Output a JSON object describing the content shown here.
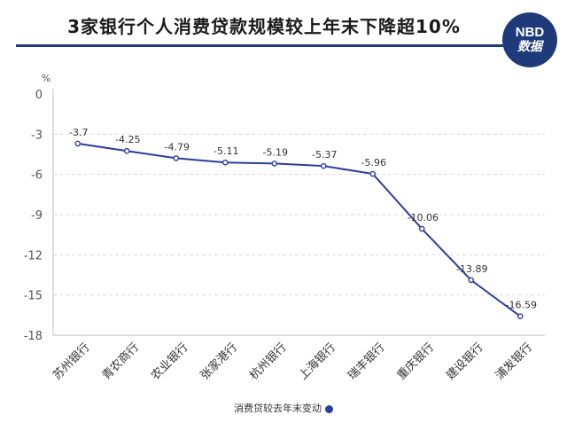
{
  "title": "3家银行个人消费贷款规模较上年末下降超10%",
  "logo": {
    "line1": "NBD",
    "line2": "数据"
  },
  "colors": {
    "accent": "#1e3a7b",
    "line": "#2c3e9e"
  },
  "chart_data": {
    "type": "line",
    "unit": "%",
    "categories": [
      "苏州银行",
      "青农商行",
      "农业银行",
      "张家港行",
      "杭州银行",
      "上海银行",
      "瑞丰银行",
      "重庆银行",
      "建设银行",
      "浦发银行"
    ],
    "series": [
      {
        "name": "消费贷较去年末变动",
        "values": [
          -3.7,
          -4.25,
          -4.79,
          -5.11,
          -5.19,
          -5.37,
          -5.96,
          -10.06,
          -13.89,
          -16.59
        ]
      }
    ],
    "data_labels": [
      "-3.7",
      "-4.25",
      "-4.79",
      "-5.11",
      "-5.19",
      "-5.37",
      "-5.96",
      "-10.06",
      "-13.89",
      "-16.59"
    ],
    "yticks": [
      "0",
      "-3",
      "-6",
      "-9",
      "-12",
      "-15",
      "-18"
    ],
    "ylim": [
      -18,
      0
    ],
    "grid": true,
    "legend": "bottom"
  }
}
